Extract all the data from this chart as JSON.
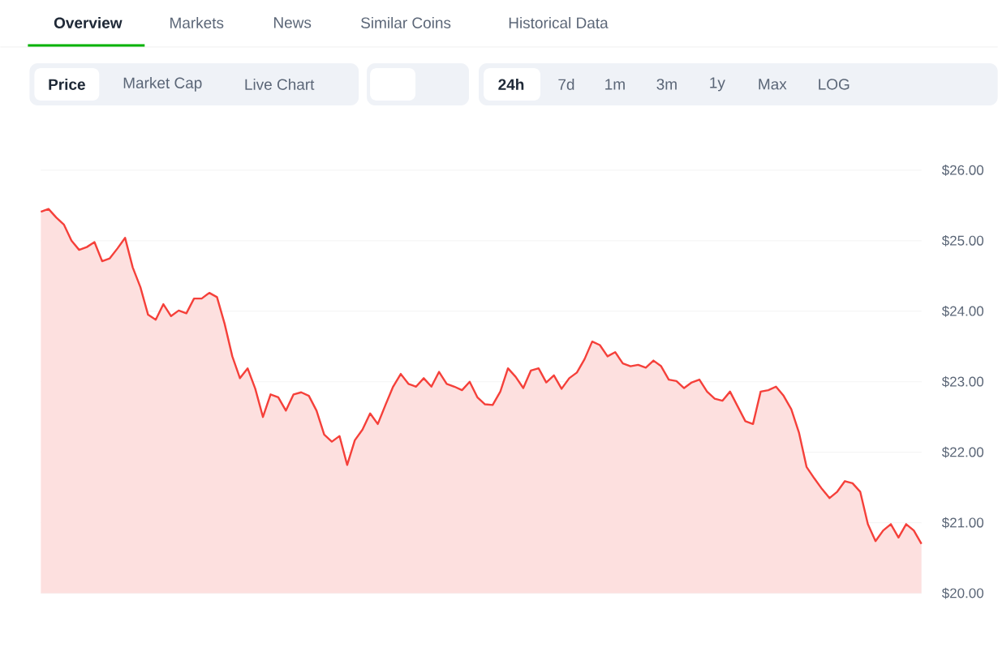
{
  "chart_data": {
    "type": "area",
    "categories": [
      null,
      null,
      null,
      null,
      null,
      null,
      null,
      null,
      null,
      null,
      null,
      null,
      null,
      null,
      null,
      null,
      null,
      null,
      null,
      null,
      null,
      null,
      null,
      null,
      null,
      null,
      null,
      null,
      null,
      null,
      null,
      null,
      null,
      null,
      null,
      null,
      null,
      null,
      null,
      null,
      null,
      null,
      null,
      null,
      null,
      null,
      null,
      null,
      null,
      null,
      null,
      null,
      null,
      null,
      null,
      null,
      null,
      null,
      null,
      null,
      null,
      null,
      null,
      null,
      null,
      null,
      null,
      null,
      null,
      null,
      null,
      null,
      null,
      null,
      null,
      null,
      null,
      null,
      null,
      null,
      null,
      null,
      null,
      null,
      null,
      null,
      null,
      null,
      null,
      null,
      null,
      null,
      null,
      null,
      null,
      null,
      null,
      null,
      null,
      null,
      null,
      null,
      null,
      null,
      null,
      null,
      null,
      null,
      null,
      null,
      null,
      null,
      null,
      null,
      null,
      null
    ],
    "series": [
      {
        "color": "#f5403a",
        "values": [
          25.41,
          25.45,
          25.33,
          25.23,
          25.0,
          24.87,
          24.91,
          24.98,
          24.71,
          24.75,
          24.89,
          25.04,
          24.62,
          24.34,
          23.95,
          23.88,
          24.1,
          23.93,
          24.01,
          23.97,
          24.18,
          24.18,
          24.26,
          24.2,
          23.82,
          23.36,
          23.05,
          23.19,
          22.9,
          22.5,
          22.82,
          22.78,
          22.59,
          22.82,
          22.85,
          22.8,
          22.59,
          22.25,
          22.15,
          22.23,
          21.82,
          22.17,
          22.32,
          22.55,
          22.4,
          22.67,
          22.93,
          23.11,
          22.97,
          22.93,
          23.05,
          22.93,
          23.14,
          22.97,
          22.93,
          22.88,
          23.0,
          22.78,
          22.68,
          22.67,
          22.86,
          23.19,
          23.07,
          22.91,
          23.16,
          23.19,
          22.99,
          23.09,
          22.9,
          23.05,
          23.13,
          23.32,
          23.57,
          23.52,
          23.36,
          23.42,
          23.26,
          23.22,
          23.24,
          23.2,
          23.3,
          23.22,
          23.03,
          23.01,
          22.91,
          22.99,
          23.03,
          22.86,
          22.76,
          22.73,
          22.86,
          22.65,
          22.44,
          22.4,
          22.86,
          22.88,
          22.93,
          22.8,
          22.61,
          22.28,
          21.79,
          21.63,
          21.48,
          21.35,
          21.44,
          21.59,
          21.56,
          21.44,
          20.98,
          20.74,
          20.89,
          20.98,
          20.79,
          20.98,
          20.89,
          20.7
        ]
      }
    ],
    "ylim": [
      20,
      26
    ],
    "yticks": [
      {
        "value": 20,
        "label": "$20.00"
      },
      {
        "value": 21,
        "label": "$21.00"
      },
      {
        "value": 22,
        "label": "$22.00"
      },
      {
        "value": 23,
        "label": "$23.00"
      },
      {
        "value": 24,
        "label": "$24.00"
      },
      {
        "value": 25,
        "label": "$25.00"
      },
      {
        "value": 26,
        "label": "$26.00"
      }
    ],
    "grid": "y",
    "tick_labels": "y",
    "annotations": [
      "Overview",
      "Markets",
      "News",
      "Similar Coins",
      "Historical Data",
      "Price",
      "Market Cap",
      "Live Chart",
      "24h",
      "7d",
      "1m",
      "3m",
      "1y",
      "Max",
      "LOG"
    ]
  }
}
